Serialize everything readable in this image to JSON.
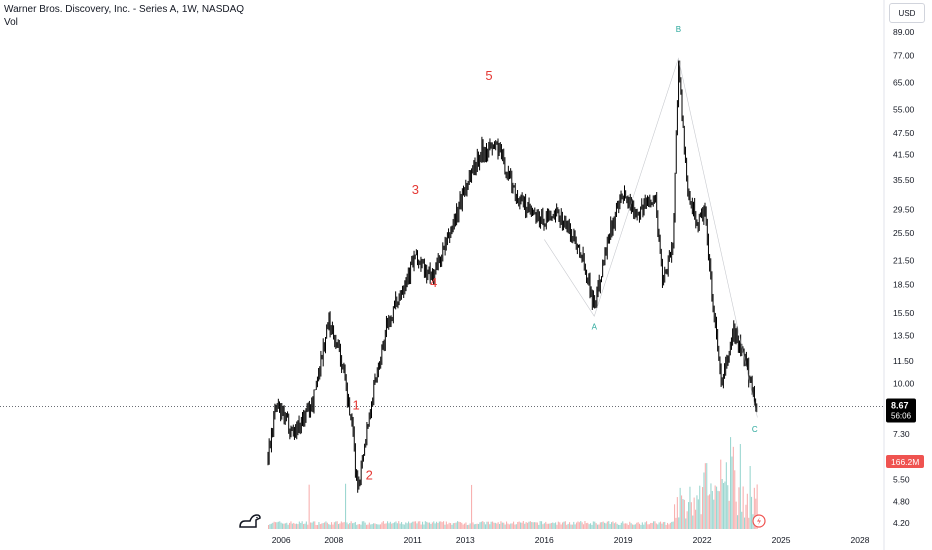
{
  "header": {
    "symbol_title": "Warner Bros. Discovery, Inc. - Series A, 1W, NASDAQ",
    "volume_label": "Vol"
  },
  "currency_button": "USD",
  "last_price": {
    "value": "8.67",
    "countdown": "56:06"
  },
  "last_volume": "166.2M",
  "colors": {
    "up": "#26a69a",
    "down": "#ef5350",
    "candle": "#000000",
    "wave_label": "#e53935",
    "abc_label": "#26a69a",
    "price_tag": "#000000"
  },
  "chart_data": {
    "type": "line",
    "y_scale": "log",
    "y_ticks": [
      "89.00",
      "77.00",
      "65.00",
      "55.00",
      "47.50",
      "41.50",
      "35.50",
      "29.50",
      "25.50",
      "21.50",
      "18.50",
      "15.50",
      "13.50",
      "11.50",
      "10.00",
      "7.30",
      "5.50",
      "4.80",
      "4.20"
    ],
    "x_ticks": [
      "2006",
      "2008",
      "2011",
      "2013",
      "2016",
      "2019",
      "2022",
      "2025",
      "2028"
    ],
    "price_path": [
      {
        "x": 2005.5,
        "y": 6.4
      },
      {
        "x": 2005.8,
        "y": 8.7
      },
      {
        "x": 2006.5,
        "y": 7.4
      },
      {
        "x": 2007.2,
        "y": 8.9
      },
      {
        "x": 2007.8,
        "y": 14.7
      },
      {
        "x": 2008.2,
        "y": 12.5
      },
      {
        "x": 2008.7,
        "y": 7.6
      },
      {
        "x": 2008.9,
        "y": 5.2
      },
      {
        "x": 2009.5,
        "y": 9.6
      },
      {
        "x": 2010.0,
        "y": 14.0
      },
      {
        "x": 2010.5,
        "y": 17.5
      },
      {
        "x": 2011.1,
        "y": 22.0
      },
      {
        "x": 2011.7,
        "y": 19.2
      },
      {
        "x": 2012.3,
        "y": 24.0
      },
      {
        "x": 2013.0,
        "y": 34.0
      },
      {
        "x": 2013.6,
        "y": 42.5
      },
      {
        "x": 2014.2,
        "y": 44.0
      },
      {
        "x": 2015.0,
        "y": 31.5
      },
      {
        "x": 2015.8,
        "y": 27.5
      },
      {
        "x": 2016.6,
        "y": 28.5
      },
      {
        "x": 2017.4,
        "y": 23.0
      },
      {
        "x": 2017.9,
        "y": 16.3
      },
      {
        "x": 2018.5,
        "y": 26.0
      },
      {
        "x": 2019.0,
        "y": 32.0
      },
      {
        "x": 2019.6,
        "y": 29.0
      },
      {
        "x": 2020.2,
        "y": 32.5
      },
      {
        "x": 2020.5,
        "y": 19.0
      },
      {
        "x": 2020.9,
        "y": 24.0
      },
      {
        "x": 2021.1,
        "y": 75.0
      },
      {
        "x": 2021.4,
        "y": 35.0
      },
      {
        "x": 2021.8,
        "y": 27.0
      },
      {
        "x": 2022.1,
        "y": 29.0
      },
      {
        "x": 2022.4,
        "y": 16.5
      },
      {
        "x": 2022.75,
        "y": 9.8
      },
      {
        "x": 2023.2,
        "y": 14.0
      },
      {
        "x": 2023.7,
        "y": 11.0
      },
      {
        "x": 2024.1,
        "y": 8.67
      }
    ],
    "wave_lines": [
      {
        "x": 2016.0,
        "y": 24.5
      },
      {
        "x": 2017.9,
        "y": 15.2
      },
      {
        "x": 2021.1,
        "y": 75.5
      },
      {
        "x": 2024.1,
        "y": 8.1
      }
    ],
    "annotations": [
      {
        "text": "1",
        "x": 2008.85,
        "y": 8.5,
        "style": "wave"
      },
      {
        "text": "2",
        "x": 2009.35,
        "y": 5.5,
        "style": "wave"
      },
      {
        "text": "3",
        "x": 2011.1,
        "y": 32.5,
        "style": "wave"
      },
      {
        "text": "4",
        "x": 2011.8,
        "y": 18.2,
        "style": "wave"
      },
      {
        "text": "5",
        "x": 2013.9,
        "y": 66.0,
        "style": "wave"
      },
      {
        "text": "A",
        "x": 2017.9,
        "y": 14.0,
        "style": "abc"
      },
      {
        "text": "B",
        "x": 2021.1,
        "y": 89.0,
        "style": "abc"
      },
      {
        "text": "C",
        "x": 2024.0,
        "y": 7.4,
        "style": "abc"
      }
    ],
    "last_price_line": 8.67,
    "volume_scale_max": 200
  }
}
